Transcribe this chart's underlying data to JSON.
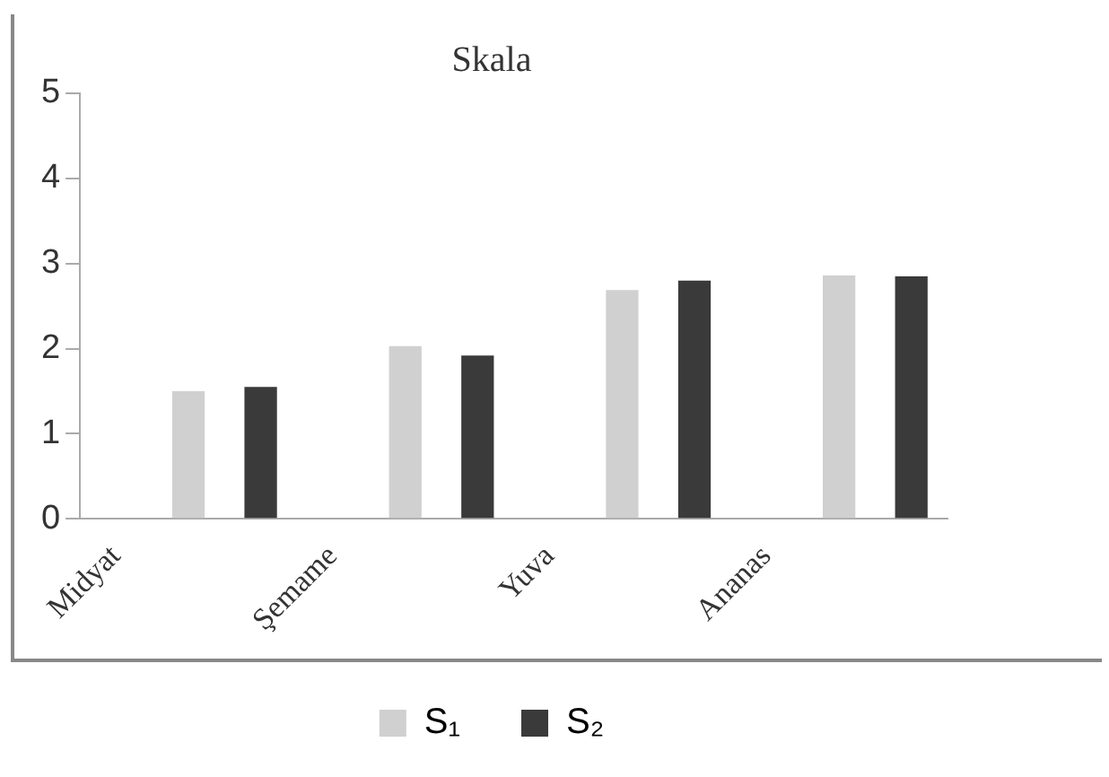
{
  "chart_data": {
    "type": "bar",
    "title": "Skala",
    "categories": [
      "Midyat",
      null,
      null,
      "Şemame",
      null,
      null,
      "Yuva",
      null,
      null,
      "Ananas",
      null,
      null
    ],
    "series": [
      {
        "name": "S₁",
        "color": "#d0d0d0",
        "values": [
          null,
          1.5,
          null,
          null,
          2.03,
          null,
          null,
          2.69,
          null,
          null,
          2.86,
          null
        ]
      },
      {
        "name": "S₂",
        "color": "#3a3a3a",
        "values": [
          null,
          null,
          1.55,
          null,
          null,
          1.92,
          null,
          null,
          2.8,
          null,
          null,
          2.85
        ]
      }
    ],
    "ylim": [
      0,
      5
    ],
    "yticks": [
      0,
      1,
      2,
      3,
      4,
      5
    ],
    "grid": false,
    "legend": "bottom"
  }
}
